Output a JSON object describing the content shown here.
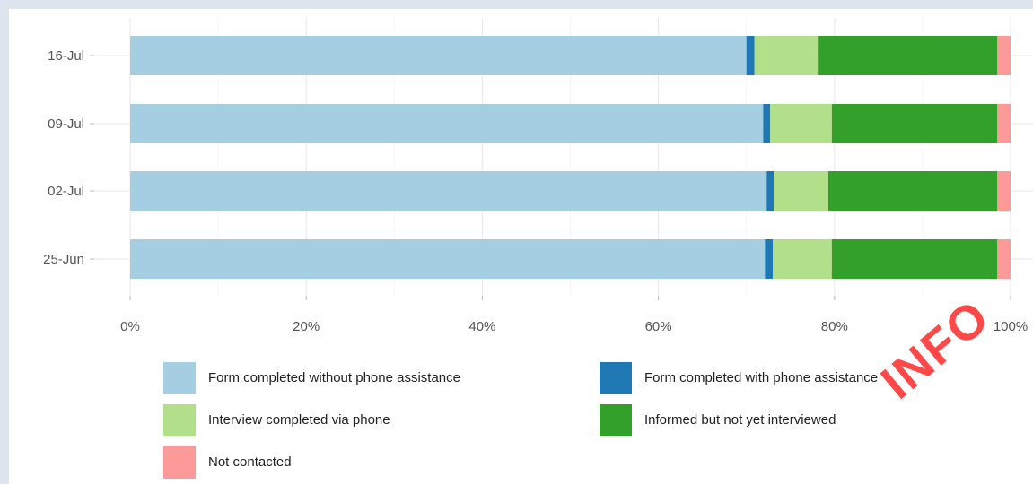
{
  "chart_data": {
    "type": "bar",
    "orientation": "horizontal",
    "stacked": true,
    "categories": [
      "16-Jul",
      "09-Jul",
      "02-Jul",
      "25-Jun"
    ],
    "series": [
      {
        "name": "Form completed without phone assistance",
        "color": "#a6cee3",
        "values": [
          70.0,
          71.9,
          72.3,
          72.1
        ]
      },
      {
        "name": "Form completed with phone assistance",
        "color": "#1f78b4",
        "values": [
          0.9,
          0.8,
          0.8,
          0.9
        ]
      },
      {
        "name": "Interview completed via phone",
        "color": "#b2df8a",
        "values": [
          7.2,
          7.0,
          6.2,
          6.7
        ]
      },
      {
        "name": "Informed but not yet interviewed",
        "color": "#33a02c",
        "values": [
          20.4,
          18.8,
          19.2,
          18.8
        ]
      },
      {
        "name": "Not contacted",
        "color": "#fb9a99",
        "values": [
          1.5,
          1.5,
          1.5,
          1.5
        ]
      }
    ],
    "xticks": [
      "0%",
      "20%",
      "40%",
      "60%",
      "80%",
      "100%"
    ],
    "xlim": [
      0,
      100
    ],
    "grid": true,
    "legend_position": "bottom"
  },
  "watermark": {
    "text": "INFO"
  }
}
